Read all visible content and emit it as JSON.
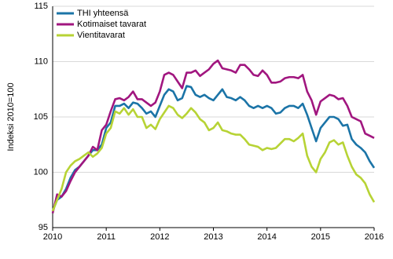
{
  "chart_data": {
    "type": "line",
    "y_label": "Indeksi 2010=100",
    "x": [
      2010,
      2010.083,
      2010.167,
      2010.25,
      2010.333,
      2010.417,
      2010.5,
      2010.583,
      2010.667,
      2010.75,
      2010.833,
      2010.917,
      2011,
      2011.083,
      2011.167,
      2011.25,
      2011.333,
      2011.417,
      2011.5,
      2011.583,
      2011.667,
      2011.75,
      2011.833,
      2011.917,
      2012,
      2012.083,
      2012.167,
      2012.25,
      2012.333,
      2012.417,
      2012.5,
      2012.583,
      2012.667,
      2012.75,
      2012.833,
      2012.917,
      2013,
      2013.083,
      2013.167,
      2013.25,
      2013.333,
      2013.417,
      2013.5,
      2013.583,
      2013.667,
      2013.75,
      2013.833,
      2013.917,
      2014,
      2014.083,
      2014.167,
      2014.25,
      2014.333,
      2014.417,
      2014.5,
      2014.583,
      2014.667,
      2014.75,
      2014.833,
      2014.917,
      2015,
      2015.083,
      2015.167,
      2015.25,
      2015.333,
      2015.417,
      2015.5,
      2015.583,
      2015.667,
      2015.75,
      2015.833,
      2015.917,
      2016
    ],
    "series": [
      {
        "name": "THI yhteensä",
        "color": "#1b74a7",
        "values": [
          96.5,
          97.5,
          97.8,
          98.5,
          99.5,
          100.2,
          100.5,
          101,
          101.5,
          102,
          102,
          102.5,
          104,
          104.5,
          106,
          106,
          106.2,
          105.8,
          106.3,
          106.2,
          105.8,
          105.3,
          105.5,
          105,
          106,
          107,
          107.5,
          107.3,
          106.5,
          106.7,
          107.8,
          107.7,
          107,
          106.8,
          107,
          106.7,
          106.5,
          107,
          107.5,
          106.8,
          106.7,
          106.5,
          106.8,
          106.5,
          106,
          105.8,
          106,
          105.8,
          106,
          105.8,
          105.3,
          105.4,
          105.8,
          106,
          106,
          105.8,
          106.2,
          105.2,
          104,
          102.8,
          104,
          104.5,
          105,
          105,
          104.8,
          104.2,
          104.3,
          103,
          102.5,
          102.2,
          101.8,
          101,
          100.4
        ]
      },
      {
        "name": "Kotimaiset tavarat",
        "color": "#a1167f",
        "values": [
          96.3,
          98,
          97.8,
          98.3,
          99.2,
          100,
          100.5,
          101,
          101.5,
          102.3,
          102,
          103.8,
          104.3,
          105.5,
          106.6,
          106.7,
          106.5,
          106.8,
          107.3,
          106.6,
          106.6,
          106.3,
          106,
          106.3,
          107.3,
          108.8,
          109,
          108.8,
          108.2,
          107.6,
          109,
          109,
          109.2,
          108.7,
          109,
          109.3,
          109.8,
          110.1,
          109.4,
          109.3,
          109.2,
          109,
          109.7,
          109.7,
          109.3,
          108.8,
          108.7,
          109.2,
          108.8,
          108.1,
          108.1,
          108.2,
          108.5,
          108.6,
          108.6,
          108.5,
          108.8,
          107.3,
          106.5,
          105.2,
          106.4,
          106.7,
          107,
          106.9,
          106.6,
          106.7,
          106,
          105,
          104.8,
          104.6,
          103.5,
          103.3,
          103.1
        ]
      },
      {
        "name": "Vientitavarat",
        "color": "#b7d335",
        "values": [
          96.5,
          97.5,
          98.5,
          100,
          100.6,
          101,
          101.2,
          101.5,
          101.8,
          101.4,
          101.7,
          102.2,
          103.5,
          104,
          105.5,
          105.3,
          105.8,
          105.2,
          105.7,
          105,
          105,
          104,
          104.3,
          103.9,
          104.8,
          105.4,
          106,
          105.8,
          105.2,
          104.9,
          105.3,
          105.8,
          105.4,
          104.8,
          104.5,
          103.8,
          104,
          104.5,
          103.8,
          103.7,
          103.5,
          103.4,
          103.4,
          103,
          102.5,
          102.4,
          102.3,
          102,
          102.2,
          102.1,
          102.2,
          102.6,
          103,
          103,
          102.8,
          103.1,
          103.5,
          101.5,
          100.5,
          100,
          101.2,
          101.8,
          102.7,
          102.9,
          102.5,
          102.7,
          101.5,
          100.5,
          99.8,
          99.5,
          99,
          98,
          97.3
        ]
      }
    ],
    "xlim": [
      2010,
      2016
    ],
    "xticks": [
      2010,
      2011,
      2012,
      2013,
      2014,
      2015,
      2016
    ],
    "ylim": [
      95,
      115
    ],
    "yticks": [
      95,
      100,
      105,
      110,
      115
    ],
    "grid": true,
    "legend": "upper left"
  }
}
